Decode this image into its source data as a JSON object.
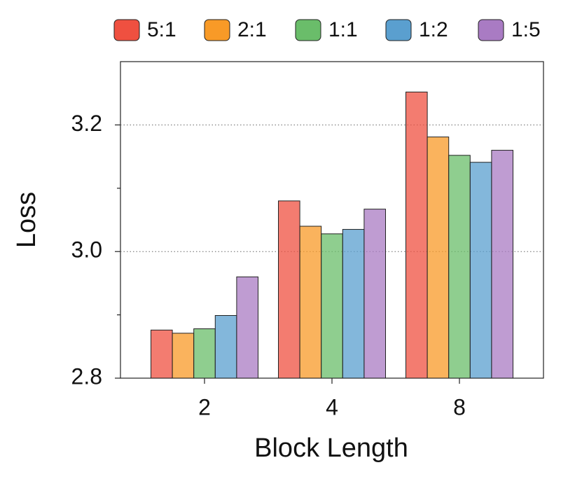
{
  "chart_data": {
    "type": "bar",
    "x_label": "Block Length",
    "y_label": "Loss",
    "categories": [
      "2",
      "4",
      "8"
    ],
    "series": [
      {
        "name": "5:1",
        "color": "#ef5040",
        "values": [
          2.876,
          3.08,
          3.252
        ]
      },
      {
        "name": "2:1",
        "color": "#f89a27",
        "values": [
          2.871,
          3.04,
          3.181
        ]
      },
      {
        "name": "1:1",
        "color": "#6abd6a",
        "values": [
          2.878,
          3.028,
          3.152
        ]
      },
      {
        "name": "1:2",
        "color": "#5a9fcf",
        "values": [
          2.899,
          3.035,
          3.141
        ]
      },
      {
        "name": "1:5",
        "color": "#a97bc3",
        "values": [
          2.96,
          3.067,
          3.16
        ]
      }
    ],
    "ylim": [
      2.8,
      3.3
    ],
    "yticks": [
      {
        "value": 2.8,
        "label": "2.8"
      },
      {
        "value": 3.0,
        "label": "3.0"
      },
      {
        "value": 3.2,
        "label": "3.2"
      }
    ],
    "yminorticks": [
      2.9,
      3.1
    ],
    "grid": true,
    "legend": "top"
  }
}
